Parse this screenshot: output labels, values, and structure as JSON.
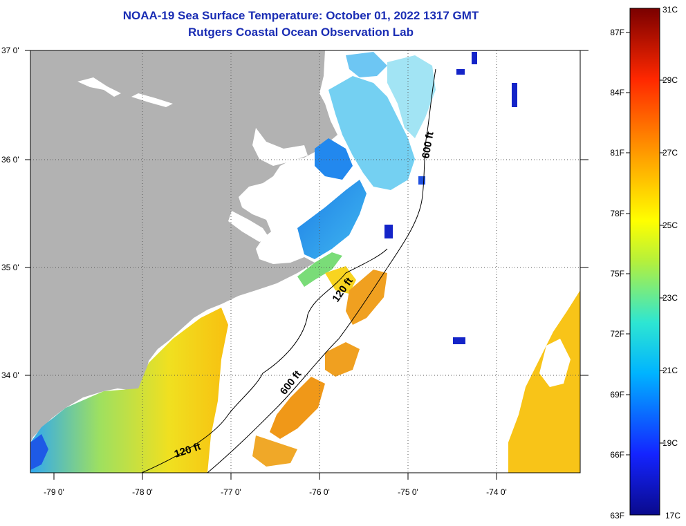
{
  "title": {
    "line1": "NOAA-19 Sea Surface Temperature:  October 01, 2022 1317 GMT",
    "line2": "Rutgers Coastal Ocean Observation Lab"
  },
  "axes": {
    "lat_labels": [
      "37 0'",
      "36 0'",
      "35 0'",
      "34 0'"
    ],
    "lon_labels": [
      "-79 0'",
      "-78 0'",
      "-77 0'",
      "-76 0'",
      "-75 0'",
      "-74 0'"
    ]
  },
  "isobaths": [
    {
      "label": "120 ft",
      "depth_ft": 120
    },
    {
      "label": "600 ft",
      "depth_ft": 600
    }
  ],
  "colorbar": {
    "celsius": [
      "31C",
      "29C",
      "27C",
      "25C",
      "23C",
      "21C",
      "19C",
      "17C"
    ],
    "fahrenheit": [
      "87F",
      "84F",
      "81F",
      "78F",
      "75F",
      "72F",
      "69F",
      "66F",
      "63F"
    ],
    "range_c": [
      17,
      31
    ]
  },
  "colors": {
    "title": "#1a2db4",
    "land": "#b2b2b2",
    "no_data": "#ffffff"
  }
}
